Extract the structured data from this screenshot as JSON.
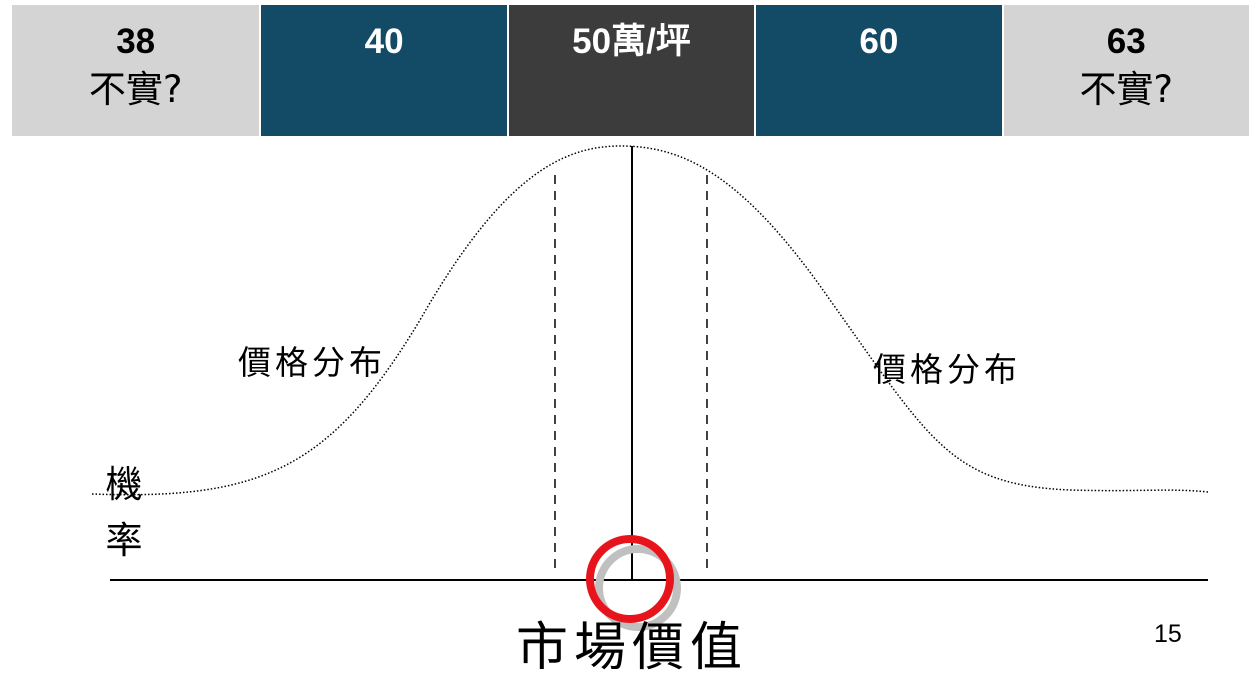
{
  "header_band": {
    "cells": [
      {
        "price": "38",
        "note": "不實?",
        "color": "#d4d4d4"
      },
      {
        "price": "40",
        "note": "",
        "color": "#134a65"
      },
      {
        "price": "50萬/坪",
        "note": "",
        "color": "#3c3c3c"
      },
      {
        "price": "60",
        "note": "",
        "color": "#134a65"
      },
      {
        "price": "63",
        "note": "不實?",
        "color": "#d4d4d4"
      }
    ]
  },
  "diagram": {
    "left_curve_label": "價格分布",
    "right_curve_label": "價格分布",
    "y_axis_label": "機\n率",
    "x_axis_label": "市場價值",
    "highlight_color": "#e8141c",
    "shadow_color": "#c0c0c0"
  },
  "page_number": "15"
}
